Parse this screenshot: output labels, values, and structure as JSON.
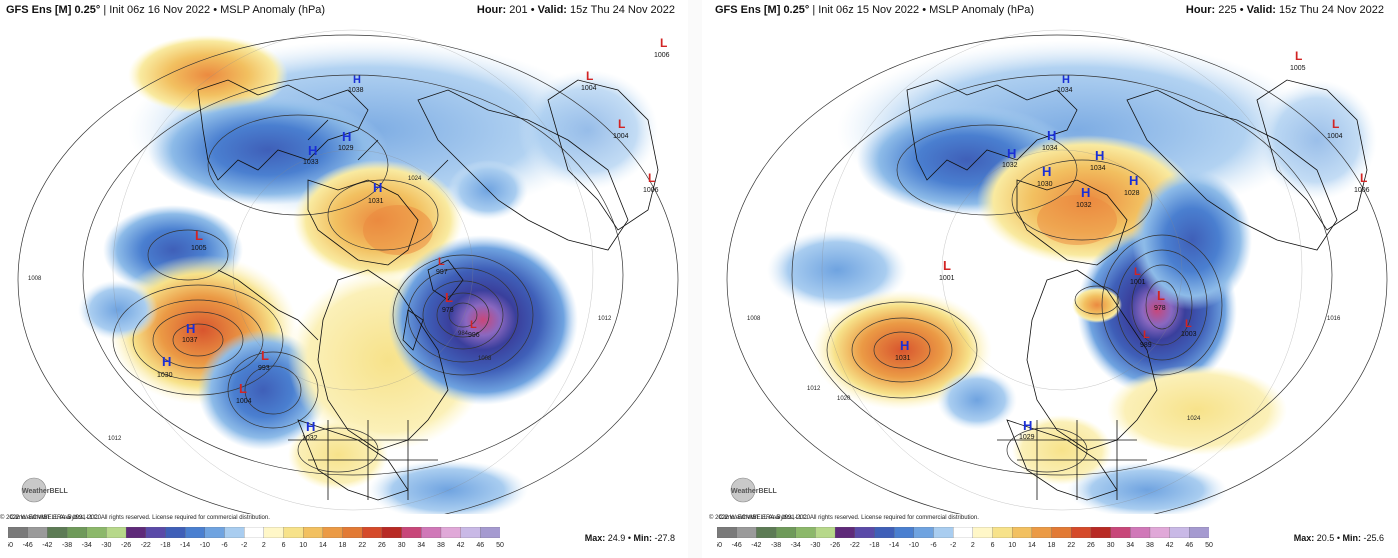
{
  "panels": [
    {
      "title_model": "GFS Ens [M] 0.25°",
      "title_init": "Init 06z 16 Nov 2022",
      "title_field": "MSLP Anomaly (hPa)",
      "hour_label": "Hour:",
      "hour_value": "201",
      "valid_label": "Valid:",
      "valid_value": "15z Thu 24 Nov 2022",
      "climo": "Climo: ECMWF ERA-5 1991-2020",
      "copyright": "© 2022 WeatherBELL Analytics, LLC. All rights reserved. License required for commercial distribution.",
      "max_label": "Max:",
      "max_value": "24.9",
      "min_label": "Min:",
      "min_value": "-27.8",
      "pressure_centers": [
        {
          "type": "H",
          "value": "1033"
        },
        {
          "type": "H",
          "value": "1029"
        },
        {
          "type": "H",
          "value": "1031"
        },
        {
          "type": "L",
          "value": "1005"
        },
        {
          "type": "H",
          "value": "1037"
        },
        {
          "type": "H",
          "value": "1030"
        },
        {
          "type": "L",
          "value": "993"
        },
        {
          "type": "L",
          "value": "1004"
        },
        {
          "type": "H",
          "value": "1032"
        },
        {
          "type": "L",
          "value": "978"
        },
        {
          "type": "L",
          "value": "997"
        },
        {
          "type": "L",
          "value": "996"
        },
        {
          "type": "L",
          "value": "1004"
        },
        {
          "type": "L",
          "value": "1006"
        },
        {
          "type": "L",
          "value": "1004"
        },
        {
          "type": "L",
          "value": "1006"
        },
        {
          "type": "H",
          "value": "1038"
        }
      ]
    },
    {
      "title_model": "GFS Ens [M] 0.25°",
      "title_init": "Init 06z 15 Nov 2022",
      "title_field": "MSLP Anomaly (hPa)",
      "hour_label": "Hour:",
      "hour_value": "225",
      "valid_label": "Valid:",
      "valid_value": "15z Thu 24 Nov 2022",
      "climo": "Climo: ECMWF ERA-5 1991-2020",
      "copyright": "© 2022 WeatherBELL Analytics, LLC. All rights reserved. License required for commercial distribution.",
      "max_label": "Max:",
      "max_value": "20.5",
      "min_label": "Min:",
      "min_value": "-25.6",
      "pressure_centers": [
        {
          "type": "H",
          "value": "1032"
        },
        {
          "type": "H",
          "value": "1034"
        },
        {
          "type": "H",
          "value": "1030"
        },
        {
          "type": "H",
          "value": "1034"
        },
        {
          "type": "H",
          "value": "1032"
        },
        {
          "type": "H",
          "value": "1028"
        },
        {
          "type": "L",
          "value": "1001"
        },
        {
          "type": "H",
          "value": "1031"
        },
        {
          "type": "L",
          "value": "1001"
        },
        {
          "type": "L",
          "value": "978"
        },
        {
          "type": "L",
          "value": "1003"
        },
        {
          "type": "L",
          "value": "989"
        },
        {
          "type": "H",
          "value": "1029"
        },
        {
          "type": "L",
          "value": "1005"
        },
        {
          "type": "L",
          "value": "1004"
        },
        {
          "type": "L",
          "value": "1006"
        },
        {
          "type": "H",
          "value": "1034"
        }
      ]
    }
  ],
  "colorbar": {
    "ticks": [
      "-50",
      "-46",
      "-42",
      "-38",
      "-34",
      "-30",
      "-26",
      "-22",
      "-18",
      "-14",
      "-10",
      "-6",
      "-2",
      "2",
      "6",
      "10",
      "14",
      "18",
      "22",
      "26",
      "30",
      "34",
      "38",
      "42",
      "46",
      "50"
    ],
    "colors": [
      "#7a7a7a",
      "#9a9a9a",
      "#5d7b55",
      "#6f9a5a",
      "#8cb86a",
      "#b7d88a",
      "#5f2a7a",
      "#5a4aa8",
      "#3f5fb8",
      "#4a7fd0",
      "#6fa3e0",
      "#a9cdf0",
      "#ffffff",
      "#fff7c8",
      "#f7e28a",
      "#f2c060",
      "#eb9a45",
      "#e27a35",
      "#d54a2a",
      "#b82a25",
      "#c8477a",
      "#d078b8",
      "#e0a8d8",
      "#c9b9e6",
      "#a59ad0"
    ]
  },
  "logo_text": "WeatherBELL"
}
